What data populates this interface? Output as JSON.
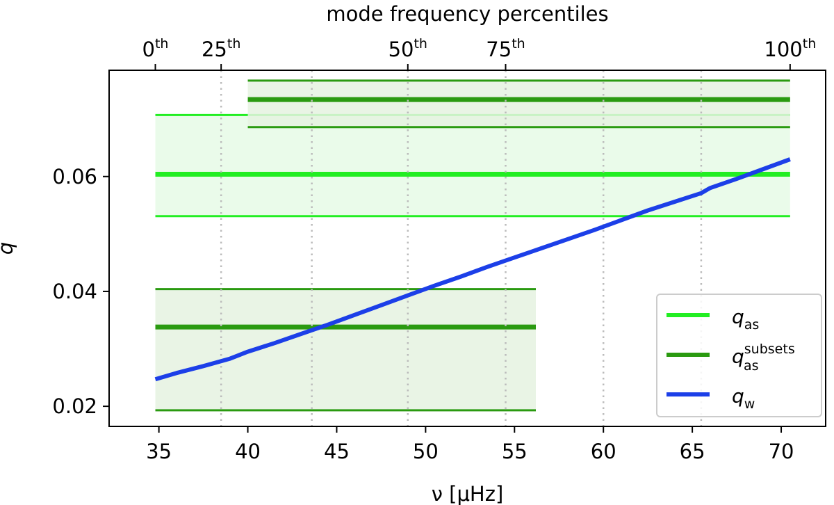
{
  "chart_data": {
    "type": "line",
    "xlabel": "ν [μHz]",
    "ylabel": "q",
    "top_axis_title": "mode frequency percentiles",
    "xlim": [
      32.2,
      72.5
    ],
    "ylim": [
      0.0165,
      0.0785
    ],
    "x_ticks": [
      35,
      40,
      45,
      50,
      55,
      60,
      65,
      70
    ],
    "y_ticks": [
      0.02,
      0.04,
      0.06
    ],
    "y_tick_labels": [
      "0.02",
      "0.04",
      "0.06"
    ],
    "top_ticks": [
      {
        "nu": 34.8,
        "base": "0",
        "sup": "th"
      },
      {
        "nu": 38.5,
        "base": "25",
        "sup": "th"
      },
      {
        "nu": 49.0,
        "base": "50",
        "sup": "th"
      },
      {
        "nu": 54.5,
        "base": "75",
        "sup": "th"
      },
      {
        "nu": 70.5,
        "base": "100",
        "sup": "th"
      }
    ],
    "mode_frequency_lines": [
      38.5,
      43.6,
      49.0,
      54.5,
      60.0,
      65.5
    ],
    "bands": [
      {
        "series": "q_as",
        "x_range": [
          34.8,
          70.5
        ],
        "center": 0.0604,
        "low": 0.0531,
        "high": 0.0707,
        "color": "#22ee22",
        "fill": "#e6fae6"
      },
      {
        "series": "q_as_subsets",
        "x_range": [
          40.0,
          70.5
        ],
        "center": 0.0734,
        "low": 0.0686,
        "high": 0.0767,
        "color": "#2a9a10",
        "fill": "#e5f2e1"
      },
      {
        "series": "q_as_subsets",
        "x_range": [
          34.8,
          56.2
        ],
        "center": 0.0338,
        "low": 0.0193,
        "high": 0.0404,
        "color": "#2a9a10",
        "fill": "#e5f2e1"
      }
    ],
    "series": [
      {
        "name": "q_w",
        "color": "#1c3fe8",
        "x": [
          34.8,
          36.0,
          37.5,
          39.0,
          40.0,
          41.5,
          43.0,
          44.5,
          46.0,
          47.5,
          49.0,
          50.5,
          52.0,
          53.5,
          55.0,
          56.5,
          58.0,
          59.5,
          61.0,
          62.5,
          64.0,
          65.5,
          66.0,
          67.5,
          69.0,
          70.5
        ],
        "y": [
          0.0247,
          0.0258,
          0.027,
          0.0283,
          0.0295,
          0.031,
          0.0326,
          0.0342,
          0.0359,
          0.0376,
          0.0393,
          0.041,
          0.0426,
          0.0443,
          0.0459,
          0.0475,
          0.0491,
          0.0507,
          0.0524,
          0.0541,
          0.0556,
          0.0571,
          0.058,
          0.0596,
          0.0613,
          0.063
        ]
      }
    ],
    "legend": {
      "position": "lower-right",
      "entries": [
        {
          "key": "q_as",
          "base": "q",
          "sub": "as",
          "sup": "",
          "color": "#22ee22"
        },
        {
          "key": "q_as_subsets",
          "base": "q",
          "sub": "as",
          "sup": "subsets",
          "color": "#2a9a10"
        },
        {
          "key": "q_w",
          "base": "q",
          "sub": "w",
          "sup": "",
          "color": "#1c3fe8"
        }
      ]
    }
  }
}
